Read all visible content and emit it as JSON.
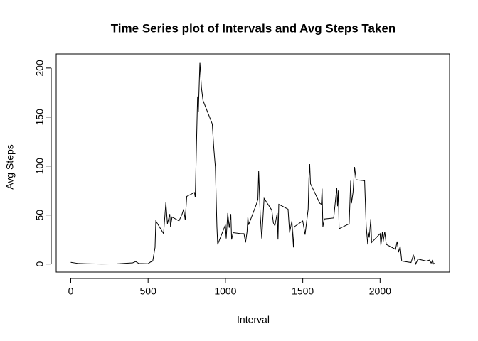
{
  "chart_data": {
    "type": "line",
    "title": "Time Series plot of Intervals and Avg Steps Taken",
    "x_label": "Interval",
    "y_label": "Avg Steps",
    "x": [
      0,
      50,
      100,
      200,
      300,
      400,
      420,
      440,
      500,
      515,
      530,
      545,
      550,
      600,
      615,
      625,
      640,
      645,
      655,
      700,
      720,
      730,
      740,
      750,
      800,
      805,
      820,
      825,
      835,
      845,
      855,
      915,
      925,
      935,
      945,
      950,
      1000,
      1005,
      1015,
      1025,
      1035,
      1040,
      1050,
      1100,
      1120,
      1130,
      1140,
      1145,
      1150,
      1200,
      1210,
      1215,
      1225,
      1235,
      1250,
      1300,
      1310,
      1320,
      1335,
      1340,
      1345,
      1405,
      1415,
      1430,
      1440,
      1445,
      1500,
      1515,
      1535,
      1540,
      1545,
      1550,
      1610,
      1620,
      1625,
      1630,
      1640,
      1700,
      1720,
      1725,
      1730,
      1735,
      1800,
      1810,
      1815,
      1825,
      1835,
      1845,
      1900,
      1910,
      1920,
      1925,
      1930,
      1940,
      1945,
      2000,
      2005,
      2015,
      2020,
      2030,
      2040,
      2100,
      2110,
      2120,
      2130,
      2140,
      2200,
      2215,
      2220,
      2230,
      2245,
      2300,
      2320,
      2330,
      2340,
      2345,
      2355
    ],
    "series": [
      {
        "color": "#000000",
        "values": [
          1.7,
          0.5,
          0.3,
          0,
          0.2,
          1.2,
          2.5,
          0.5,
          0.3,
          2,
          3,
          17,
          44,
          31,
          63,
          41,
          51,
          38,
          48,
          44,
          51,
          56,
          45,
          69,
          73,
          68,
          171,
          155,
          206,
          180,
          167,
          143,
          118,
          99,
          38,
          20,
          40,
          26,
          52,
          37,
          51,
          25,
          32,
          31,
          31,
          22,
          33,
          48,
          40,
          61,
          66,
          95,
          50,
          26,
          67,
          55,
          42,
          39,
          52,
          25,
          61,
          56,
          32,
          44,
          17,
          38,
          44,
          30,
          56,
          87,
          102,
          82,
          62,
          61,
          77,
          38,
          46,
          47,
          78,
          59,
          75,
          36,
          41,
          85,
          62,
          73,
          99,
          86,
          85,
          39,
          20,
          32,
          27,
          46,
          22,
          31,
          19,
          33,
          23,
          33,
          20,
          15,
          23,
          12,
          18,
          3,
          1.5,
          9,
          7,
          0,
          5,
          3,
          4,
          1,
          3.5,
          0,
          1
        ]
      }
    ],
    "xlim": [
      -94.2,
      2449.2
    ],
    "xticks": [
      0,
      500,
      1000,
      1500,
      2000
    ],
    "ylim": [
      -8.25,
      214.4
    ],
    "yticks": [
      0,
      50,
      100,
      150,
      200
    ]
  }
}
